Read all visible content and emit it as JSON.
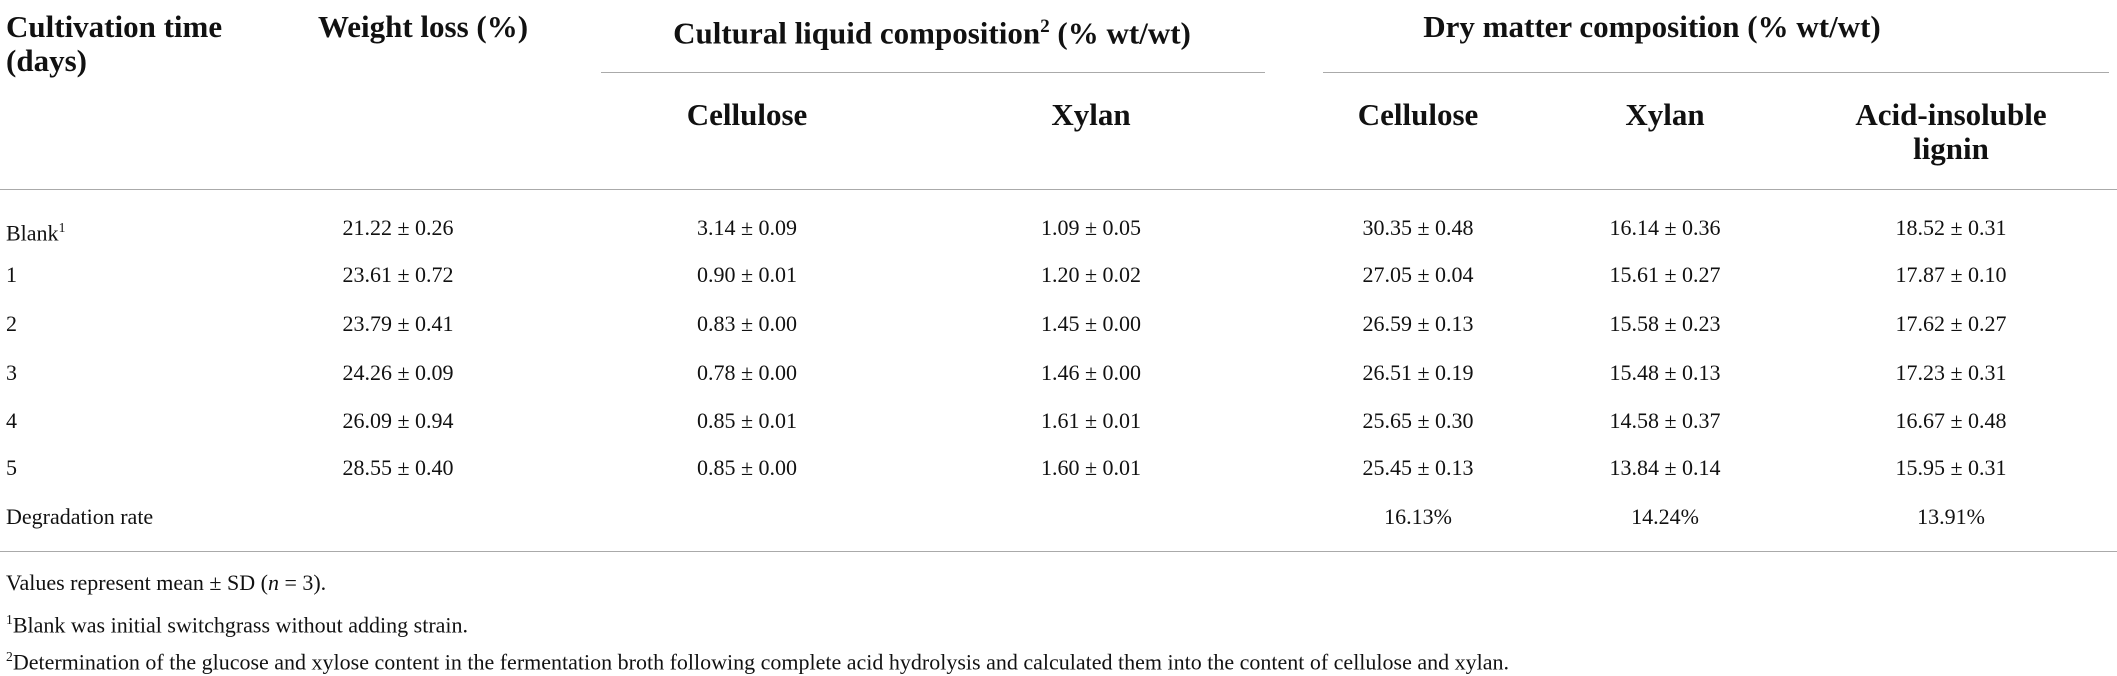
{
  "table": {
    "header": {
      "cultivation": "Cultivation time (days)",
      "weight": "Weight loss (%)",
      "liquid": {
        "title": "Cultural liquid composition",
        "sup": "2",
        "unit": "(% wt/wt)"
      },
      "dry": "Dry matter composition (% wt/wt)",
      "sub": [
        "Cellulose",
        "Xylan",
        "Cellulose",
        "Xylan",
        "Acid-insoluble lignin"
      ]
    },
    "rows": [
      {
        "label": "Blank",
        "sup": "1",
        "cells": [
          "21.22 ± 0.26",
          "3.14 ± 0.09",
          "1.09 ± 0.05",
          "30.35 ± 0.48",
          "16.14 ± 0.36",
          "18.52 ± 0.31"
        ]
      },
      {
        "label": "1",
        "cells": [
          "23.61 ± 0.72",
          "0.90 ± 0.01",
          "1.20 ± 0.02",
          "27.05 ± 0.04",
          "15.61 ± 0.27",
          "17.87 ± 0.10"
        ]
      },
      {
        "label": "2",
        "cells": [
          "23.79 ± 0.41",
          "0.83 ± 0.00",
          "1.45 ± 0.00",
          "26.59 ± 0.13",
          "15.58 ± 0.23",
          "17.62 ± 0.27"
        ]
      },
      {
        "label": "3",
        "cells": [
          "24.26 ± 0.09",
          "0.78 ± 0.00",
          "1.46 ± 0.00",
          "26.51 ± 0.19",
          "15.48 ± 0.13",
          "17.23 ± 0.31"
        ]
      },
      {
        "label": "4",
        "cells": [
          "26.09 ± 0.94",
          "0.85 ± 0.01",
          "1.61 ± 0.01",
          "25.65 ± 0.30",
          "14.58 ± 0.37",
          "16.67 ± 0.48"
        ]
      },
      {
        "label": "5",
        "cells": [
          "28.55 ± 0.40",
          "0.85 ± 0.00",
          "1.60 ± 0.01",
          "25.45 ± 0.13",
          "13.84 ± 0.14",
          "15.95 ± 0.31"
        ]
      }
    ],
    "degradation": {
      "label": "Degradation rate",
      "cells": [
        "16.13%",
        "14.24%",
        "13.91%"
      ]
    }
  },
  "footnotes": {
    "values": {
      "before": "Values represent mean ± SD (",
      "italic": "n",
      "after": " = 3)."
    },
    "notes": [
      {
        "sup": "1",
        "text": "Blank was initial switchgrass without adding strain."
      },
      {
        "sup": "2",
        "text": "Determination of the glucose and xylose content in the fermentation broth following complete acid hydrolysis and calculated them into the content of cellulose and xylan."
      }
    ]
  }
}
